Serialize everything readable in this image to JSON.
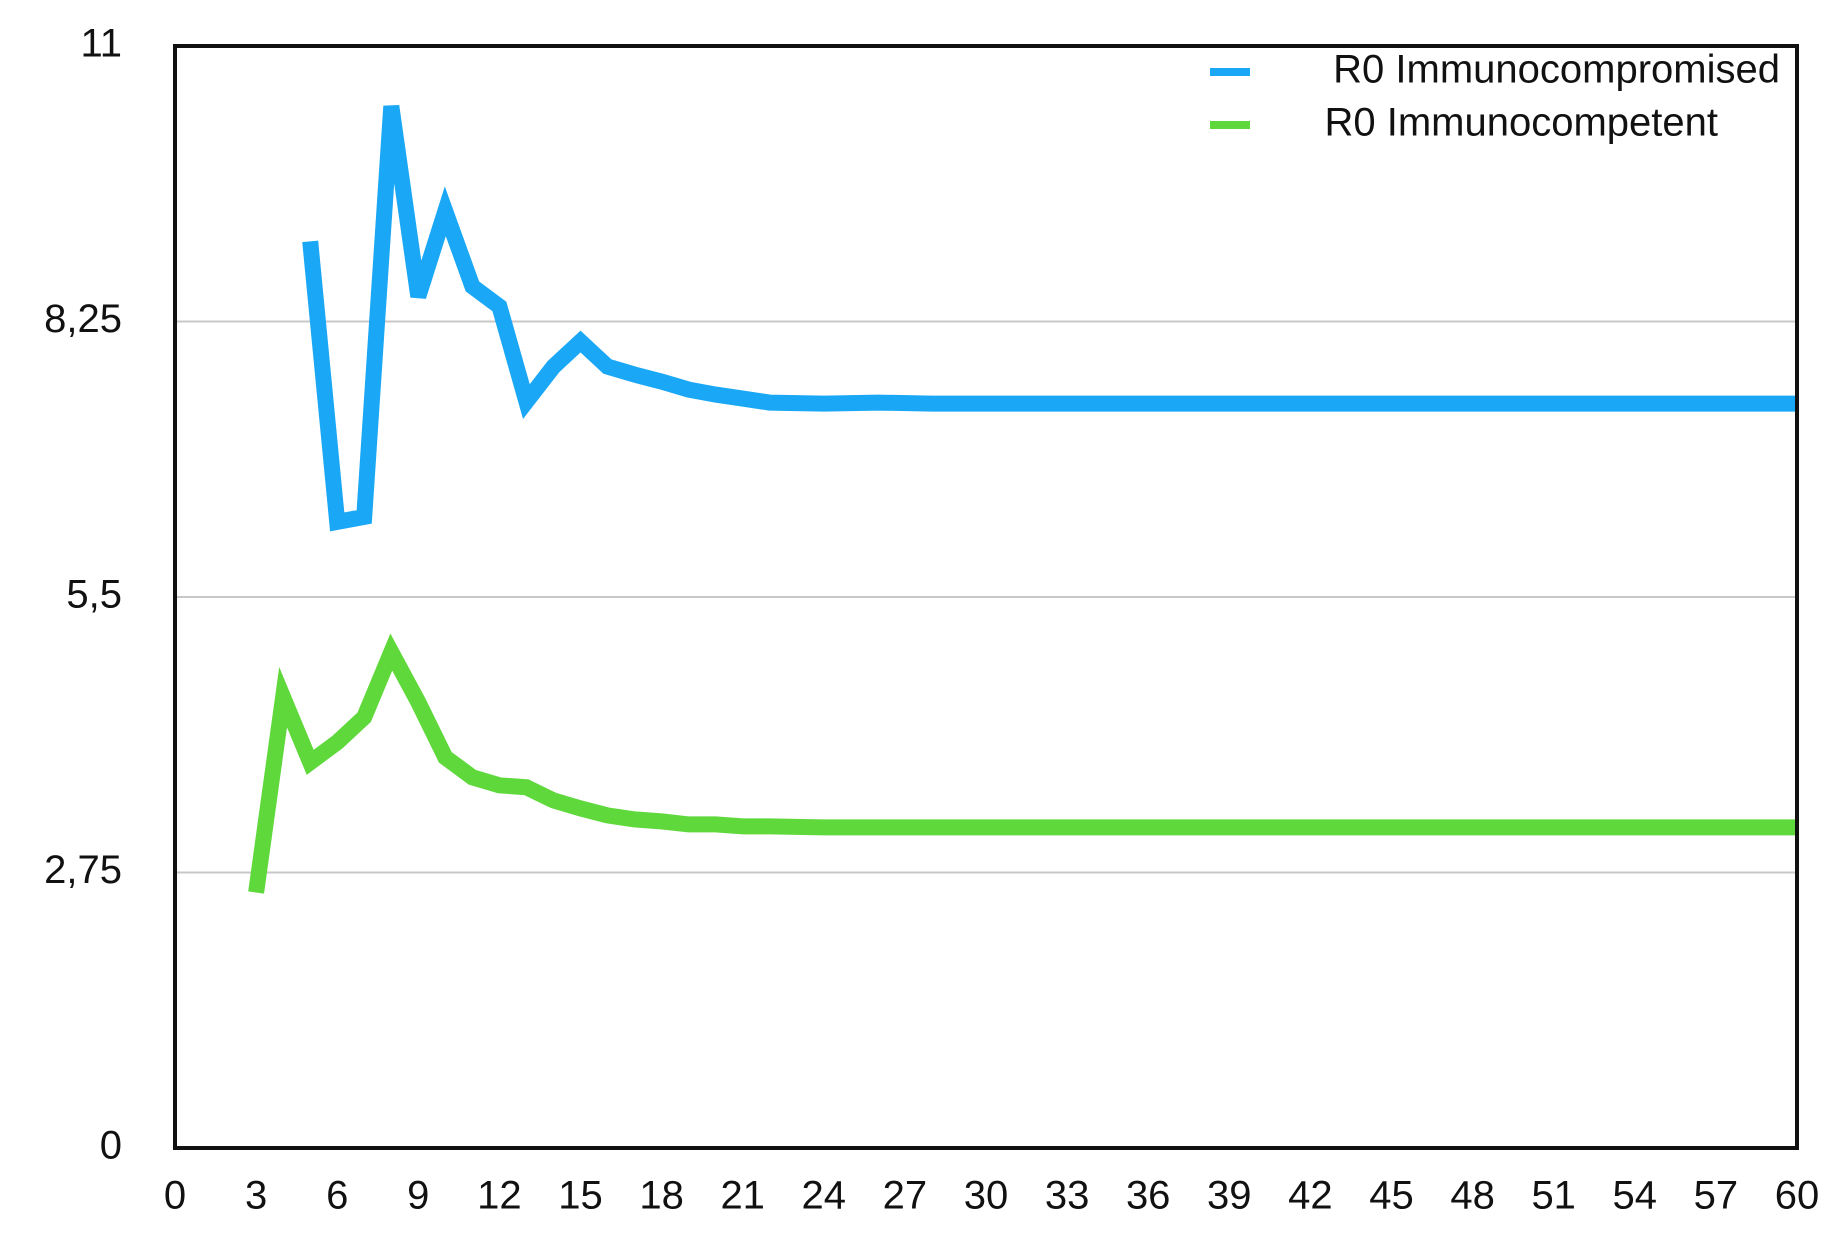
{
  "chart_data": {
    "type": "line",
    "title": "",
    "xlabel": "",
    "ylabel": "",
    "xlim": [
      0,
      60
    ],
    "ylim": [
      0,
      11
    ],
    "x_ticks": [
      "0",
      "3",
      "6",
      "9",
      "12",
      "15",
      "18",
      "21",
      "24",
      "27",
      "30",
      "33",
      "36",
      "39",
      "42",
      "45",
      "48",
      "51",
      "54",
      "57",
      "60"
    ],
    "y_ticks": [
      "0",
      "2,75",
      "5,5",
      "8,25",
      "11"
    ],
    "y_tick_values": [
      0,
      2.75,
      5.5,
      8.25,
      11
    ],
    "grid": "horizontal",
    "legend_position": "top-right",
    "series": [
      {
        "name": "R0 Immunocompromised",
        "color": "#1aa7f5",
        "x": [
          5,
          6,
          7,
          8,
          9,
          10,
          11,
          12,
          13,
          14,
          15,
          16,
          17,
          18,
          19,
          20,
          21,
          22,
          24,
          26,
          28,
          30,
          35,
          40,
          45,
          50,
          55,
          60
        ],
        "y": [
          9.05,
          6.25,
          6.3,
          10.4,
          8.5,
          9.35,
          8.6,
          8.4,
          7.45,
          7.8,
          8.05,
          7.8,
          7.72,
          7.65,
          7.57,
          7.52,
          7.48,
          7.44,
          7.43,
          7.44,
          7.43,
          7.43,
          7.43,
          7.43,
          7.43,
          7.43,
          7.43,
          7.43
        ]
      },
      {
        "name": "R0 Immunocompetent",
        "color": "#5ed83a",
        "x": [
          3,
          4,
          5,
          6,
          7,
          8,
          9,
          10,
          11,
          12,
          13,
          14,
          15,
          16,
          17,
          18,
          19,
          20,
          21,
          22,
          24,
          26,
          28,
          30,
          35,
          40,
          45,
          50,
          55,
          60
        ],
        "y": [
          2.55,
          4.5,
          3.85,
          4.05,
          4.3,
          4.95,
          4.45,
          3.9,
          3.7,
          3.62,
          3.6,
          3.47,
          3.39,
          3.32,
          3.28,
          3.26,
          3.23,
          3.23,
          3.21,
          3.21,
          3.2,
          3.2,
          3.2,
          3.2,
          3.2,
          3.2,
          3.2,
          3.2,
          3.2,
          3.2
        ]
      }
    ]
  }
}
